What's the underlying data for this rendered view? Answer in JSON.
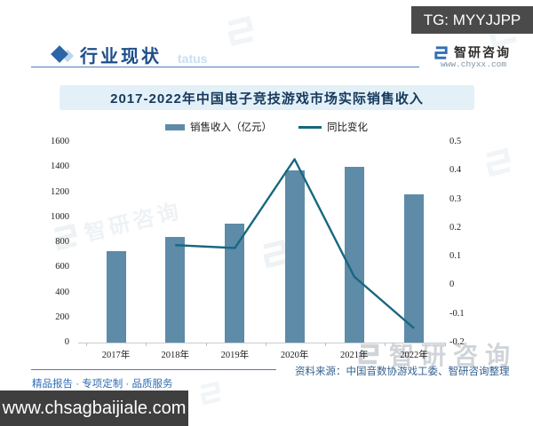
{
  "banners": {
    "tg_label": "TG: MYYJJPP",
    "site_label": "www.chsagbaijiale.com"
  },
  "header": {
    "section_title": "行业现状",
    "watermark_text": "tatus",
    "brand": {
      "name": "智研咨询",
      "url": "www.chyxx.com"
    }
  },
  "chart_data": {
    "type": "bar",
    "title": "2017-2022年中国电子竞技游戏市场实际销售收入",
    "categories": [
      "2017年",
      "2018年",
      "2019年",
      "2020年",
      "2021年",
      "2022年"
    ],
    "series": [
      {
        "name": "销售收入（亿元）",
        "type": "bar",
        "axis": "left",
        "color": "#5d8ba8",
        "values": [
          730,
          840,
          950,
          1370,
          1400,
          1180
        ]
      },
      {
        "name": "同比变化",
        "type": "line",
        "axis": "right",
        "color": "#17677f",
        "values": [
          null,
          0.14,
          0.13,
          0.44,
          0.03,
          -0.15
        ]
      }
    ],
    "left_axis": {
      "min": 0,
      "max": 1600,
      "ticks": [
        "1600",
        "1400",
        "1200",
        "1000",
        "800",
        "600",
        "400",
        "200",
        "0"
      ]
    },
    "right_axis": {
      "min": -0.2,
      "max": 0.5,
      "ticks": [
        "0.5",
        "0.4",
        "0.3",
        "0.2",
        "0.1",
        "0",
        "-0.1",
        "-0.2"
      ]
    },
    "grid": false,
    "legend_position": "top"
  },
  "footer": {
    "source": "资料来源：中国音数协游戏工委、智研咨询整理",
    "tagline": "精品报告 · 专项定制 · 品质服务"
  },
  "watermark": {
    "text": "智研咨询"
  },
  "colors": {
    "accent_blue": "#2a65a8",
    "bar": "#5d8ba8",
    "line": "#17677f",
    "title_band_bg": "#e3f0f8",
    "banner_bg": "#4a4a4a"
  }
}
